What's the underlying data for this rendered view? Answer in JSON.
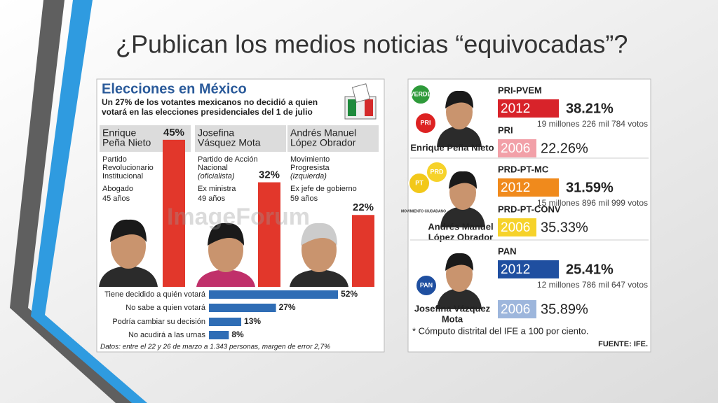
{
  "title": "¿Publican los medios noticias “equivocadas”?",
  "left": {
    "title": "Elecciones en México",
    "subtitle": [
      "Un 27% de los votantes mexicanos no decidió a quien",
      "votará en las elecciones presidenciales del 1 de julio"
    ],
    "watermark": "ImageForum",
    "candidates": [
      {
        "name": [
          "Enrique",
          "Peña Nieto"
        ],
        "details": [
          "Partido",
          "Revolucionario",
          "Institucional",
          "Abogado",
          "45 años"
        ]
      },
      {
        "name": [
          "Josefina",
          "Vásquez Mota"
        ],
        "details": [
          "Partido de Acción",
          "Nacional",
          "(oficialista)",
          "Ex ministra",
          "49 años"
        ]
      },
      {
        "name": [
          "Andrés Manuel",
          "López Obrador"
        ],
        "details": [
          "Movimiento",
          "Progresista",
          "(izquierda)",
          "Ex jefe de gobierno",
          "59 años"
        ]
      }
    ],
    "vote_intention": {
      "type": "bar",
      "values": [
        45,
        32,
        22
      ],
      "value_labels": [
        "45%",
        "32%",
        "22%"
      ],
      "color": "#e2372b"
    },
    "decision": {
      "type": "bar",
      "categories": [
        "Tiene decidido a quién votará",
        "No sabe a quien votará",
        "Podría cambiar su decisión",
        "No acudirá a las urnas"
      ],
      "values": [
        52,
        27,
        13,
        8
      ],
      "value_labels": [
        "52%",
        "27%",
        "13%",
        "8%"
      ],
      "color": "#2f6db5"
    },
    "note": "Datos: entre el 22 y 26 de marzo a 1.343 personas, margen de error 2,7%"
  },
  "right": {
    "sections": [
      {
        "candidate": [
          "Enrique Peña Nieto"
        ],
        "logos": [
          "VERDE",
          "PRI"
        ],
        "results": [
          {
            "party": "PRI-PVEM",
            "year": "2012",
            "percent": "38.21%",
            "votes": "19 millones 226 mil 784 votos"
          },
          {
            "party": "PRI",
            "year": "2006",
            "percent": "22.26%"
          }
        ]
      },
      {
        "candidate": [
          "Andrés Manuel",
          "López Obrador"
        ],
        "logos": [
          "PT",
          "PRD",
          "MOVIMIENTO CIUDADANO"
        ],
        "results": [
          {
            "party": "PRD-PT-MC",
            "year": "2012",
            "percent": "31.59%",
            "votes": "15 millones 896 mil 999 votos"
          },
          {
            "party": "PRD-PT-CONV",
            "year": "2006",
            "percent": "35.33%"
          }
        ]
      },
      {
        "candidate": [
          "Josefina Vázquez",
          "Mota"
        ],
        "logos": [
          "PAN"
        ],
        "results": [
          {
            "party": "PAN",
            "year": "2012",
            "percent": "25.41%",
            "votes": "12 millones 786 mil 647 votos"
          },
          {
            "year": "2006",
            "percent": "35.89%"
          }
        ]
      }
    ],
    "note": "* Cómputo distrital del IFE a 100 por ciento.",
    "source": "FUENTE: IFE."
  }
}
